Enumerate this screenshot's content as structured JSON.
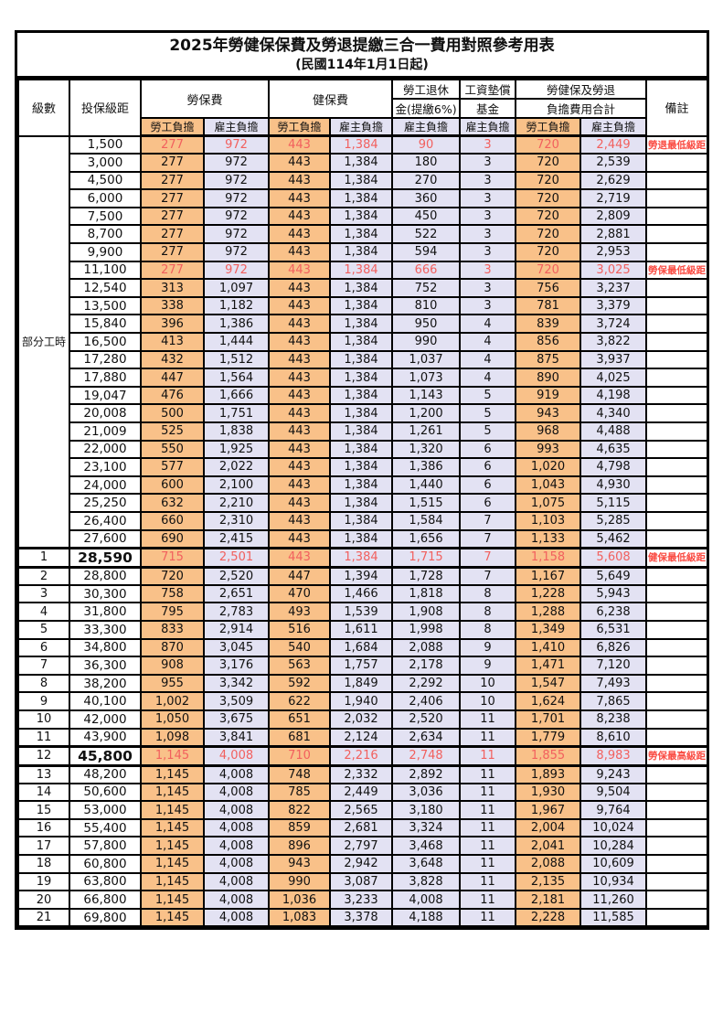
{
  "title": {
    "line1": "2025年勞健保保費及勞退提繳三合一費用對照參考用表",
    "line2": "(民國114年1月1日起)"
  },
  "colors": {
    "employee_fill": "#F9C189",
    "employer_fill": "#E3E2F3",
    "red_text": "#F2605E",
    "remark_red": "#FA4B42",
    "border": "#000000"
  },
  "header": {
    "level": "級數",
    "bracket": "投保級距",
    "labor_group": "勞保費",
    "health_group": "健保費",
    "pension_line1": "勞工退休",
    "pension_line2": "金(提繳6%)",
    "wage_fund_line1": "工資墊償",
    "wage_fund_line2": "基金",
    "total_line1": "勞健保及勞退",
    "total_line2": "負擔費用合計",
    "employee": "勞工負擔",
    "employer": "雇主負擔",
    "remark": "備註"
  },
  "table": {
    "part_time_label": "部分工時",
    "part_time_row_count": 23,
    "rows": [
      {
        "level": "",
        "bracket": "1,500",
        "v": [
          "277",
          "972",
          "443",
          "1,384",
          "90",
          "3",
          "720",
          "2,449"
        ],
        "remark": "勞退最低級距",
        "red": true,
        "emph": false
      },
      {
        "level": "",
        "bracket": "3,000",
        "v": [
          "277",
          "972",
          "443",
          "1,384",
          "180",
          "3",
          "720",
          "2,539"
        ],
        "remark": "",
        "red": false,
        "emph": false
      },
      {
        "level": "",
        "bracket": "4,500",
        "v": [
          "277",
          "972",
          "443",
          "1,384",
          "270",
          "3",
          "720",
          "2,629"
        ],
        "remark": "",
        "red": false,
        "emph": false
      },
      {
        "level": "",
        "bracket": "6,000",
        "v": [
          "277",
          "972",
          "443",
          "1,384",
          "360",
          "3",
          "720",
          "2,719"
        ],
        "remark": "",
        "red": false,
        "emph": false
      },
      {
        "level": "",
        "bracket": "7,500",
        "v": [
          "277",
          "972",
          "443",
          "1,384",
          "450",
          "3",
          "720",
          "2,809"
        ],
        "remark": "",
        "red": false,
        "emph": false
      },
      {
        "level": "",
        "bracket": "8,700",
        "v": [
          "277",
          "972",
          "443",
          "1,384",
          "522",
          "3",
          "720",
          "2,881"
        ],
        "remark": "",
        "red": false,
        "emph": false
      },
      {
        "level": "",
        "bracket": "9,900",
        "v": [
          "277",
          "972",
          "443",
          "1,384",
          "594",
          "3",
          "720",
          "2,953"
        ],
        "remark": "",
        "red": false,
        "emph": false
      },
      {
        "level": "",
        "bracket": "11,100",
        "v": [
          "277",
          "972",
          "443",
          "1,384",
          "666",
          "3",
          "720",
          "3,025"
        ],
        "remark": "勞保最低級距",
        "red": true,
        "emph": false
      },
      {
        "level": "",
        "bracket": "12,540",
        "v": [
          "313",
          "1,097",
          "443",
          "1,384",
          "752",
          "3",
          "756",
          "3,237"
        ],
        "remark": "",
        "red": false,
        "emph": false
      },
      {
        "level": "",
        "bracket": "13,500",
        "v": [
          "338",
          "1,182",
          "443",
          "1,384",
          "810",
          "3",
          "781",
          "3,379"
        ],
        "remark": "",
        "red": false,
        "emph": false
      },
      {
        "level": "",
        "bracket": "15,840",
        "v": [
          "396",
          "1,386",
          "443",
          "1,384",
          "950",
          "4",
          "839",
          "3,724"
        ],
        "remark": "",
        "red": false,
        "emph": false
      },
      {
        "level": "",
        "bracket": "16,500",
        "v": [
          "413",
          "1,444",
          "443",
          "1,384",
          "990",
          "4",
          "856",
          "3,822"
        ],
        "remark": "",
        "red": false,
        "emph": false
      },
      {
        "level": "",
        "bracket": "17,280",
        "v": [
          "432",
          "1,512",
          "443",
          "1,384",
          "1,037",
          "4",
          "875",
          "3,937"
        ],
        "remark": "",
        "red": false,
        "emph": false
      },
      {
        "level": "",
        "bracket": "17,880",
        "v": [
          "447",
          "1,564",
          "443",
          "1,384",
          "1,073",
          "4",
          "890",
          "4,025"
        ],
        "remark": "",
        "red": false,
        "emph": false
      },
      {
        "level": "",
        "bracket": "19,047",
        "v": [
          "476",
          "1,666",
          "443",
          "1,384",
          "1,143",
          "5",
          "919",
          "4,198"
        ],
        "remark": "",
        "red": false,
        "emph": false
      },
      {
        "level": "",
        "bracket": "20,008",
        "v": [
          "500",
          "1,751",
          "443",
          "1,384",
          "1,200",
          "5",
          "943",
          "4,340"
        ],
        "remark": "",
        "red": false,
        "emph": false
      },
      {
        "level": "",
        "bracket": "21,009",
        "v": [
          "525",
          "1,838",
          "443",
          "1,384",
          "1,261",
          "5",
          "968",
          "4,488"
        ],
        "remark": "",
        "red": false,
        "emph": false
      },
      {
        "level": "",
        "bracket": "22,000",
        "v": [
          "550",
          "1,925",
          "443",
          "1,384",
          "1,320",
          "6",
          "993",
          "4,635"
        ],
        "remark": "",
        "red": false,
        "emph": false
      },
      {
        "level": "",
        "bracket": "23,100",
        "v": [
          "577",
          "2,022",
          "443",
          "1,384",
          "1,386",
          "6",
          "1,020",
          "4,798"
        ],
        "remark": "",
        "red": false,
        "emph": false
      },
      {
        "level": "",
        "bracket": "24,000",
        "v": [
          "600",
          "2,100",
          "443",
          "1,384",
          "1,440",
          "6",
          "1,043",
          "4,930"
        ],
        "remark": "",
        "red": false,
        "emph": false
      },
      {
        "level": "",
        "bracket": "25,250",
        "v": [
          "632",
          "2,210",
          "443",
          "1,384",
          "1,515",
          "6",
          "1,075",
          "5,115"
        ],
        "remark": "",
        "red": false,
        "emph": false
      },
      {
        "level": "",
        "bracket": "26,400",
        "v": [
          "660",
          "2,310",
          "443",
          "1,384",
          "1,584",
          "7",
          "1,103",
          "5,285"
        ],
        "remark": "",
        "red": false,
        "emph": false
      },
      {
        "level": "",
        "bracket": "27,600",
        "v": [
          "690",
          "2,415",
          "443",
          "1,384",
          "1,656",
          "7",
          "1,133",
          "5,462"
        ],
        "remark": "",
        "red": false,
        "emph": false
      },
      {
        "level": "1",
        "bracket": "28,590",
        "v": [
          "715",
          "2,501",
          "443",
          "1,384",
          "1,715",
          "7",
          "1,158",
          "5,608"
        ],
        "remark": "健保最低級距",
        "red": true,
        "emph": true
      },
      {
        "level": "2",
        "bracket": "28,800",
        "v": [
          "720",
          "2,520",
          "447",
          "1,394",
          "1,728",
          "7",
          "1,167",
          "5,649"
        ],
        "remark": "",
        "red": false,
        "emph": false
      },
      {
        "level": "3",
        "bracket": "30,300",
        "v": [
          "758",
          "2,651",
          "470",
          "1,466",
          "1,818",
          "8",
          "1,228",
          "5,943"
        ],
        "remark": "",
        "red": false,
        "emph": false
      },
      {
        "level": "4",
        "bracket": "31,800",
        "v": [
          "795",
          "2,783",
          "493",
          "1,539",
          "1,908",
          "8",
          "1,288",
          "6,238"
        ],
        "remark": "",
        "red": false,
        "emph": false
      },
      {
        "level": "5",
        "bracket": "33,300",
        "v": [
          "833",
          "2,914",
          "516",
          "1,611",
          "1,998",
          "8",
          "1,349",
          "6,531"
        ],
        "remark": "",
        "red": false,
        "emph": false
      },
      {
        "level": "6",
        "bracket": "34,800",
        "v": [
          "870",
          "3,045",
          "540",
          "1,684",
          "2,088",
          "9",
          "1,410",
          "6,826"
        ],
        "remark": "",
        "red": false,
        "emph": false
      },
      {
        "level": "7",
        "bracket": "36,300",
        "v": [
          "908",
          "3,176",
          "563",
          "1,757",
          "2,178",
          "9",
          "1,471",
          "7,120"
        ],
        "remark": "",
        "red": false,
        "emph": false
      },
      {
        "level": "8",
        "bracket": "38,200",
        "v": [
          "955",
          "3,342",
          "592",
          "1,849",
          "2,292",
          "10",
          "1,547",
          "7,493"
        ],
        "remark": "",
        "red": false,
        "emph": false
      },
      {
        "level": "9",
        "bracket": "40,100",
        "v": [
          "1,002",
          "3,509",
          "622",
          "1,940",
          "2,406",
          "10",
          "1,624",
          "7,865"
        ],
        "remark": "",
        "red": false,
        "emph": false
      },
      {
        "level": "10",
        "bracket": "42,000",
        "v": [
          "1,050",
          "3,675",
          "651",
          "2,032",
          "2,520",
          "11",
          "1,701",
          "8,238"
        ],
        "remark": "",
        "red": false,
        "emph": false
      },
      {
        "level": "11",
        "bracket": "43,900",
        "v": [
          "1,098",
          "3,841",
          "681",
          "2,124",
          "2,634",
          "11",
          "1,779",
          "8,610"
        ],
        "remark": "",
        "red": false,
        "emph": false
      },
      {
        "level": "12",
        "bracket": "45,800",
        "v": [
          "1,145",
          "4,008",
          "710",
          "2,216",
          "2,748",
          "11",
          "1,855",
          "8,983"
        ],
        "remark": "勞保最高級距",
        "red": true,
        "emph": true
      },
      {
        "level": "13",
        "bracket": "48,200",
        "v": [
          "1,145",
          "4,008",
          "748",
          "2,332",
          "2,892",
          "11",
          "1,893",
          "9,243"
        ],
        "remark": "",
        "red": false,
        "emph": false
      },
      {
        "level": "14",
        "bracket": "50,600",
        "v": [
          "1,145",
          "4,008",
          "785",
          "2,449",
          "3,036",
          "11",
          "1,930",
          "9,504"
        ],
        "remark": "",
        "red": false,
        "emph": false
      },
      {
        "level": "15",
        "bracket": "53,000",
        "v": [
          "1,145",
          "4,008",
          "822",
          "2,565",
          "3,180",
          "11",
          "1,967",
          "9,764"
        ],
        "remark": "",
        "red": false,
        "emph": false
      },
      {
        "level": "16",
        "bracket": "55,400",
        "v": [
          "1,145",
          "4,008",
          "859",
          "2,681",
          "3,324",
          "11",
          "2,004",
          "10,024"
        ],
        "remark": "",
        "red": false,
        "emph": false
      },
      {
        "level": "17",
        "bracket": "57,800",
        "v": [
          "1,145",
          "4,008",
          "896",
          "2,797",
          "3,468",
          "11",
          "2,041",
          "10,284"
        ],
        "remark": "",
        "red": false,
        "emph": false
      },
      {
        "level": "18",
        "bracket": "60,800",
        "v": [
          "1,145",
          "4,008",
          "943",
          "2,942",
          "3,648",
          "11",
          "2,088",
          "10,609"
        ],
        "remark": "",
        "red": false,
        "emph": false
      },
      {
        "level": "19",
        "bracket": "63,800",
        "v": [
          "1,145",
          "4,008",
          "990",
          "3,087",
          "3,828",
          "11",
          "2,135",
          "10,934"
        ],
        "remark": "",
        "red": false,
        "emph": false
      },
      {
        "level": "20",
        "bracket": "66,800",
        "v": [
          "1,145",
          "4,008",
          "1,036",
          "3,233",
          "4,008",
          "11",
          "2,181",
          "11,260"
        ],
        "remark": "",
        "red": false,
        "emph": false
      },
      {
        "level": "21",
        "bracket": "69,800",
        "v": [
          "1,145",
          "4,008",
          "1,083",
          "3,378",
          "4,188",
          "11",
          "2,228",
          "11,585"
        ],
        "remark": "",
        "red": false,
        "emph": false
      }
    ]
  }
}
